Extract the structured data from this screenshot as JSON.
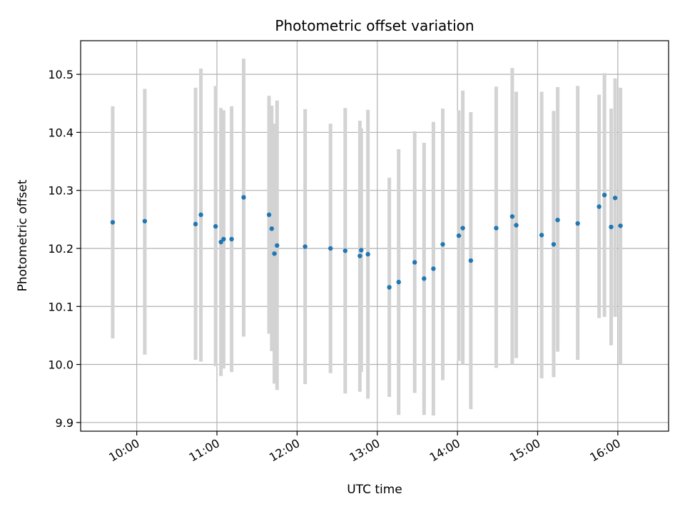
{
  "chart_data": {
    "type": "scatter",
    "title": "Photometric offset variation",
    "xlabel": "UTC time",
    "ylabel": "Photometric offset",
    "grid": true,
    "x_ticks": [
      "10:00",
      "11:00",
      "12:00",
      "13:00",
      "14:00",
      "15:00",
      "16:00"
    ],
    "y_ticks": [
      "9.9",
      "10.0",
      "10.1",
      "10.2",
      "10.3",
      "10.4",
      "10.5"
    ],
    "xlim": [
      "09:18",
      "16:38"
    ],
    "ylim": [
      9.885,
      10.558
    ],
    "colors": {
      "point": "#1f77b4",
      "errorbar": "#d3d3d3",
      "grid": "#b0b0b0",
      "axes": "#000000"
    },
    "points": [
      {
        "x": "09:42",
        "y": 10.245,
        "y_low": 10.045,
        "y_high": 10.445
      },
      {
        "x": "10:06",
        "y": 10.247,
        "y_low": 10.017,
        "y_high": 10.475
      },
      {
        "x": "10:44",
        "y": 10.242,
        "y_low": 10.008,
        "y_high": 10.477
      },
      {
        "x": "10:48",
        "y": 10.258,
        "y_low": 10.005,
        "y_high": 10.51
      },
      {
        "x": "10:59",
        "y": 10.238,
        "y_low": 9.997,
        "y_high": 10.48
      },
      {
        "x": "11:03",
        "y": 10.211,
        "y_low": 9.98,
        "y_high": 10.442
      },
      {
        "x": "11:05",
        "y": 10.216,
        "y_low": 9.993,
        "y_high": 10.438
      },
      {
        "x": "11:11",
        "y": 10.216,
        "y_low": 9.987,
        "y_high": 10.445
      },
      {
        "x": "11:20",
        "y": 10.288,
        "y_low": 10.048,
        "y_high": 10.527
      },
      {
        "x": "11:39",
        "y": 10.258,
        "y_low": 10.053,
        "y_high": 10.463
      },
      {
        "x": "11:41",
        "y": 10.234,
        "y_low": 10.023,
        "y_high": 10.446
      },
      {
        "x": "11:43",
        "y": 10.191,
        "y_low": 9.967,
        "y_high": 10.415
      },
      {
        "x": "11:45",
        "y": 10.205,
        "y_low": 9.956,
        "y_high": 10.455
      },
      {
        "x": "12:06",
        "y": 10.203,
        "y_low": 9.966,
        "y_high": 10.44
      },
      {
        "x": "12:25",
        "y": 10.2,
        "y_low": 9.985,
        "y_high": 10.415
      },
      {
        "x": "12:36",
        "y": 10.196,
        "y_low": 9.95,
        "y_high": 10.442
      },
      {
        "x": "12:47",
        "y": 10.187,
        "y_low": 9.953,
        "y_high": 10.42
      },
      {
        "x": "12:48",
        "y": 10.197,
        "y_low": 9.987,
        "y_high": 10.407
      },
      {
        "x": "12:53",
        "y": 10.19,
        "y_low": 9.941,
        "y_high": 10.439
      },
      {
        "x": "13:09",
        "y": 10.133,
        "y_low": 9.944,
        "y_high": 10.322
      },
      {
        "x": "13:16",
        "y": 10.142,
        "y_low": 9.913,
        "y_high": 10.371
      },
      {
        "x": "13:28",
        "y": 10.176,
        "y_low": 9.951,
        "y_high": 10.402
      },
      {
        "x": "13:35",
        "y": 10.148,
        "y_low": 9.913,
        "y_high": 10.382
      },
      {
        "x": "13:42",
        "y": 10.165,
        "y_low": 9.912,
        "y_high": 10.418
      },
      {
        "x": "13:49",
        "y": 10.207,
        "y_low": 9.973,
        "y_high": 10.441
      },
      {
        "x": "14:01",
        "y": 10.222,
        "y_low": 10.006,
        "y_high": 10.438
      },
      {
        "x": "14:04",
        "y": 10.235,
        "y_low": 10.0,
        "y_high": 10.472
      },
      {
        "x": "14:10",
        "y": 10.179,
        "y_low": 9.923,
        "y_high": 10.435
      },
      {
        "x": "14:29",
        "y": 10.235,
        "y_low": 9.994,
        "y_high": 10.479
      },
      {
        "x": "14:41",
        "y": 10.255,
        "y_low": 10.0,
        "y_high": 10.511
      },
      {
        "x": "14:44",
        "y": 10.24,
        "y_low": 10.011,
        "y_high": 10.47
      },
      {
        "x": "15:03",
        "y": 10.223,
        "y_low": 9.976,
        "y_high": 10.47
      },
      {
        "x": "15:12",
        "y": 10.207,
        "y_low": 9.978,
        "y_high": 10.437
      },
      {
        "x": "15:15",
        "y": 10.249,
        "y_low": 10.022,
        "y_high": 10.478
      },
      {
        "x": "15:30",
        "y": 10.243,
        "y_low": 10.008,
        "y_high": 10.48
      },
      {
        "x": "15:46",
        "y": 10.272,
        "y_low": 10.08,
        "y_high": 10.465
      },
      {
        "x": "15:50",
        "y": 10.292,
        "y_low": 10.082,
        "y_high": 10.502
      },
      {
        "x": "15:55",
        "y": 10.237,
        "y_low": 10.033,
        "y_high": 10.441
      },
      {
        "x": "15:58",
        "y": 10.287,
        "y_low": 10.082,
        "y_high": 10.493
      },
      {
        "x": "16:02",
        "y": 10.239,
        "y_low": 10.0,
        "y_high": 10.477
      }
    ]
  }
}
